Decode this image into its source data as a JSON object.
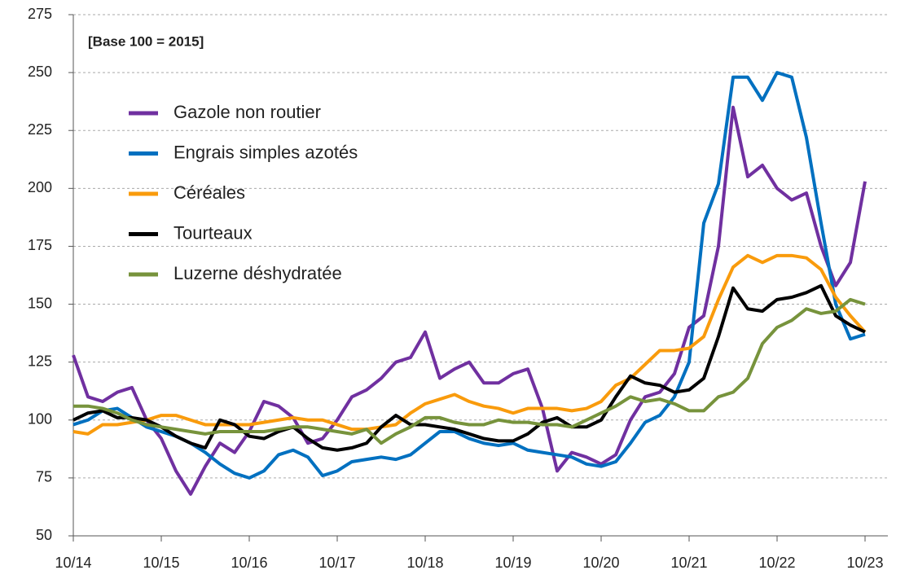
{
  "chart_data": {
    "type": "line",
    "annotation": "[Base 100 = 2015]",
    "categories": [
      "10/14",
      null,
      null,
      null,
      null,
      null,
      "10/15",
      null,
      null,
      null,
      null,
      null,
      "10/16",
      null,
      null,
      null,
      null,
      null,
      "10/17",
      null,
      null,
      null,
      null,
      null,
      "10/18",
      null,
      null,
      null,
      null,
      null,
      "10/19",
      null,
      null,
      null,
      null,
      null,
      "10/20",
      null,
      null,
      null,
      null,
      null,
      "10/21",
      null,
      null,
      null,
      null,
      null,
      "10/22",
      null,
      null,
      null,
      null,
      null,
      "10/23"
    ],
    "series": [
      {
        "name": "Gazole non routier",
        "color": "#7030a0",
        "values": [
          128,
          110,
          108,
          112,
          114,
          100,
          92,
          78,
          68,
          80,
          90,
          86,
          95,
          108,
          106,
          101,
          90,
          92,
          100,
          110,
          113,
          118,
          125,
          127,
          138,
          118,
          122,
          125,
          116,
          116,
          120,
          122,
          105,
          78,
          86,
          84,
          81,
          85,
          100,
          110,
          112,
          120,
          140,
          145,
          175,
          235,
          205,
          210,
          200,
          195,
          198,
          175,
          158,
          168,
          203
        ]
      },
      {
        "name": "Engrais simples azotés",
        "color": "#0070c0",
        "values": [
          98,
          100,
          104,
          105,
          101,
          97,
          95,
          93,
          90,
          86,
          81,
          77,
          75,
          78,
          85,
          87,
          84,
          76,
          78,
          82,
          83,
          84,
          83,
          85,
          90,
          95,
          95,
          92,
          90,
          89,
          90,
          87,
          86,
          85,
          84,
          81,
          80,
          82,
          90,
          99,
          102,
          110,
          125,
          185,
          202,
          248,
          248,
          238,
          250,
          248,
          222,
          185,
          150,
          135,
          137
        ]
      },
      {
        "name": "Céréales",
        "color": "#f99b0c",
        "values": [
          95,
          94,
          98,
          98,
          99,
          100,
          102,
          102,
          100,
          98,
          98,
          98,
          98,
          99,
          100,
          101,
          100,
          100,
          98,
          96,
          96,
          97,
          98,
          103,
          107,
          109,
          111,
          108,
          106,
          105,
          103,
          105,
          105,
          105,
          104,
          105,
          108,
          115,
          118,
          124,
          130,
          130,
          131,
          136,
          152,
          166,
          171,
          168,
          171,
          171,
          170,
          165,
          153,
          145,
          138
        ]
      },
      {
        "name": "Tourteaux",
        "color": "#000000",
        "values": [
          100,
          103,
          104,
          101,
          101,
          100,
          97,
          93,
          90,
          88,
          100,
          98,
          93,
          92,
          95,
          97,
          92,
          88,
          87,
          88,
          90,
          97,
          102,
          98,
          98,
          97,
          96,
          94,
          92,
          91,
          91,
          94,
          99,
          101,
          97,
          97,
          100,
          110,
          119,
          116,
          115,
          112,
          113,
          118,
          136,
          157,
          148,
          147,
          152,
          153,
          155,
          158,
          145,
          141,
          138
        ]
      },
      {
        "name": "Luzerne déshydratée",
        "color": "#77933c",
        "values": [
          106,
          106,
          105,
          103,
          100,
          98,
          97,
          96,
          95,
          94,
          95,
          95,
          95,
          95,
          96,
          97,
          97,
          96,
          95,
          94,
          96,
          90,
          94,
          97,
          101,
          101,
          99,
          98,
          98,
          100,
          99,
          99,
          98,
          98,
          97,
          100,
          103,
          106,
          110,
          108,
          109,
          107,
          104,
          104,
          110,
          112,
          118,
          133,
          140,
          143,
          148,
          146,
          147,
          152,
          150
        ]
      }
    ],
    "ylim": [
      50,
      275
    ],
    "yticks": [
      50,
      75,
      100,
      125,
      150,
      175,
      200,
      225,
      250,
      275
    ],
    "grid": true
  }
}
